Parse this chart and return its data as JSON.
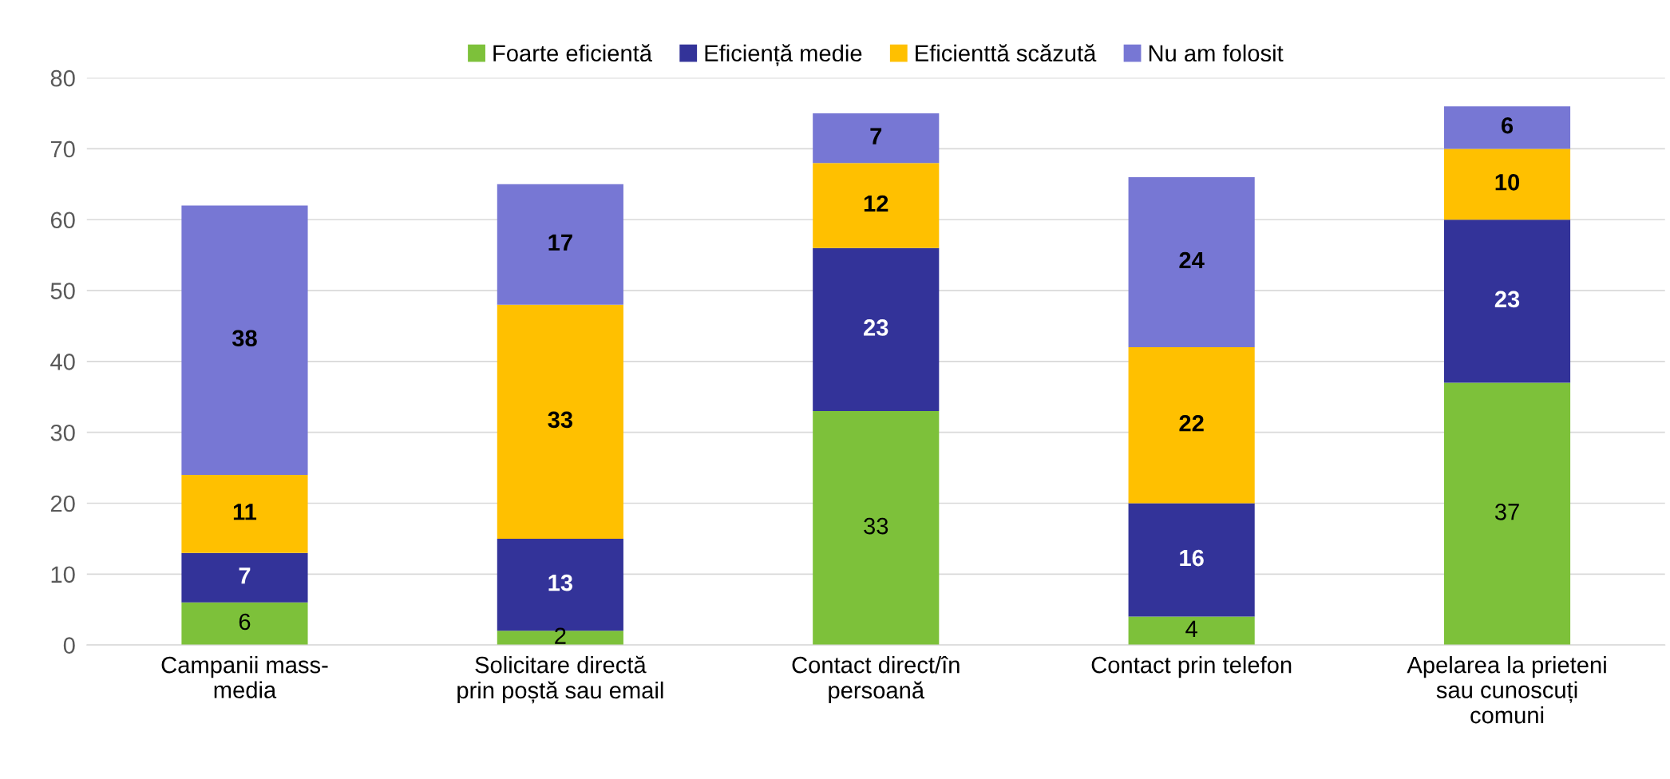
{
  "chart_data": {
    "type": "bar",
    "stacked": true,
    "categories": [
      "Campanii mass-\nmedia",
      "Solicitare directă\nprin poștă sau email",
      "Contact direct/în\npersoană",
      "Contact prin telefon",
      "Apelarea la prieteni\nsau cunoscuți\ncomuni"
    ],
    "series": [
      {
        "name": "Foarte eficientă",
        "color": "#7dc13a",
        "values": [
          6,
          2,
          33,
          4,
          37
        ]
      },
      {
        "name": "Eficiență medie",
        "color": "#333399",
        "values": [
          7,
          13,
          23,
          16,
          23
        ]
      },
      {
        "name": "Eficienttă scăzută",
        "color": "#ffc000",
        "values": [
          11,
          33,
          12,
          22,
          10
        ]
      },
      {
        "name": "Nu am folosit",
        "color": "#7777d4",
        "values": [
          38,
          17,
          7,
          24,
          6
        ]
      }
    ],
    "ylim": [
      0,
      80
    ],
    "yticks": [
      0,
      10,
      20,
      30,
      40,
      50,
      60,
      70,
      80
    ],
    "grid": "y",
    "legend": "top",
    "data_labels": true
  }
}
